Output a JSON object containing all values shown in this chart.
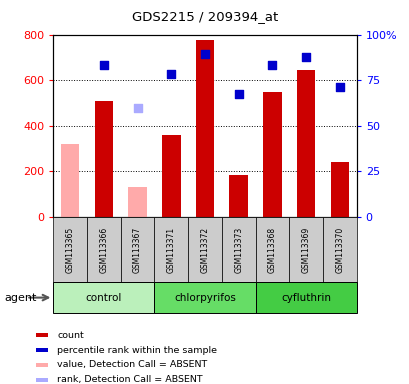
{
  "title": "GDS2215 / 209394_at",
  "samples": [
    "GSM113365",
    "GSM113366",
    "GSM113367",
    "GSM113371",
    "GSM113372",
    "GSM113373",
    "GSM113368",
    "GSM113369",
    "GSM113370"
  ],
  "groups": [
    {
      "label": "control",
      "color": "#bbf0bb",
      "samples_idx": [
        0,
        1,
        2
      ]
    },
    {
      "label": "chlorpyrifos",
      "color": "#66dd66",
      "samples_idx": [
        3,
        4,
        5
      ]
    },
    {
      "label": "cyfluthrin",
      "color": "#44cc44",
      "samples_idx": [
        6,
        7,
        8
      ]
    }
  ],
  "values": [
    320,
    510,
    null,
    360,
    775,
    185,
    550,
    645,
    240
  ],
  "pct_ranks": [
    null,
    665,
    null,
    625,
    715,
    540,
    665,
    700,
    570
  ],
  "absent": [
    true,
    false,
    true,
    false,
    false,
    false,
    false,
    false,
    false
  ],
  "absent_values": [
    320,
    null,
    130,
    null,
    null,
    null,
    null,
    null,
    null
  ],
  "absent_ranks": [
    null,
    null,
    480,
    null,
    null,
    null,
    null,
    null,
    null
  ],
  "bar_color_present": "#cc0000",
  "bar_color_absent": "#ffaaaa",
  "dot_color_present": "#0000cc",
  "dot_color_absent": "#aaaaff",
  "ylim_left": [
    0,
    800
  ],
  "ylim_right": [
    0,
    100
  ],
  "yticks_left": [
    0,
    200,
    400,
    600,
    800
  ],
  "yticks_right": [
    0,
    25,
    50,
    75,
    100
  ],
  "ytick_labels_right": [
    "0",
    "25",
    "50",
    "75",
    "100%"
  ],
  "grid_values": [
    200,
    400,
    600
  ],
  "legend_items": [
    {
      "color": "#cc0000",
      "label": "count"
    },
    {
      "color": "#0000cc",
      "label": "percentile rank within the sample"
    },
    {
      "color": "#ffaaaa",
      "label": "value, Detection Call = ABSENT"
    },
    {
      "color": "#aaaaff",
      "label": "rank, Detection Call = ABSENT"
    }
  ],
  "agent_label": "agent",
  "bar_width": 0.55,
  "tick_area_bg": "#cccccc",
  "fig_width": 4.1,
  "fig_height": 3.84,
  "dpi": 100
}
